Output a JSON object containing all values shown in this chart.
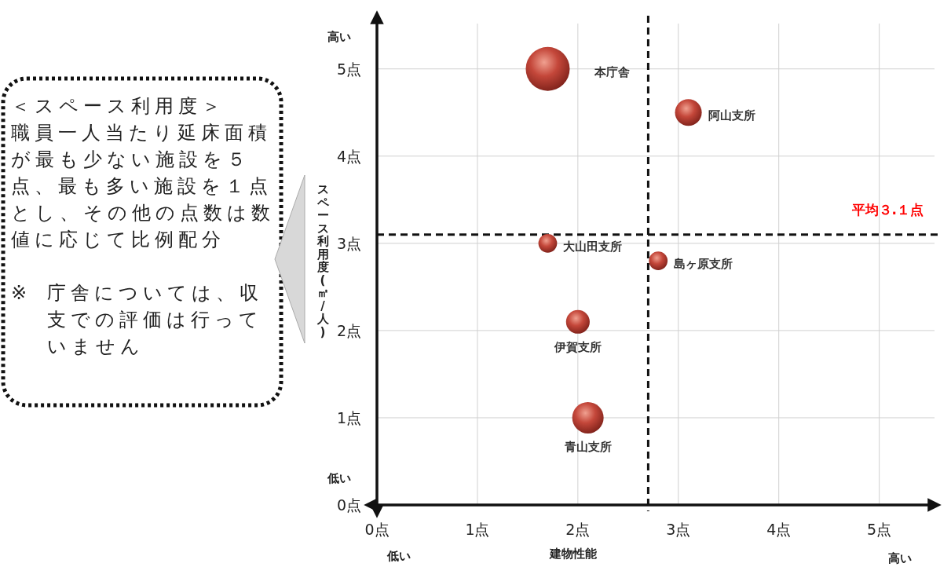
{
  "chart_data": {
    "type": "bubble",
    "xlabel": "建物性能",
    "ylabel": "スペース利用度(㎡/人)",
    "xlim": [
      0,
      5.55
    ],
    "ylim": [
      0,
      5.52
    ],
    "xticks": [
      {
        "value": 0,
        "label": "0点"
      },
      {
        "value": 1,
        "label": "1点"
      },
      {
        "value": 2,
        "label": "2点"
      },
      {
        "value": 3,
        "label": "3点"
      },
      {
        "value": 4,
        "label": "4点"
      },
      {
        "value": 5,
        "label": "5点"
      }
    ],
    "yticks": [
      {
        "value": 0,
        "label": "0点"
      },
      {
        "value": 1,
        "label": "1点"
      },
      {
        "value": 2,
        "label": "2点"
      },
      {
        "value": 3,
        "label": "3点"
      },
      {
        "value": 4,
        "label": "4点"
      },
      {
        "value": 5,
        "label": "5点"
      }
    ],
    "grid": true,
    "series": [
      {
        "name": "本庁舎",
        "color": "#c4473a",
        "x": [
          1.7
        ],
        "values": [
          5.0
        ],
        "sizes": [
          1
        ]
      },
      {
        "name": "阿山支所",
        "color": "#c4473a",
        "x": [
          3.1
        ],
        "values": [
          4.5
        ],
        "sizes": [
          0.37
        ]
      },
      {
        "name": "大山田支所",
        "color": "#c4473a",
        "x": [
          1.7
        ],
        "values": [
          3.0
        ],
        "sizes": [
          0.18
        ]
      },
      {
        "name": "島ヶ原支所",
        "color": "#c4473a",
        "x": [
          2.8
        ],
        "values": [
          2.8
        ],
        "sizes": [
          0.18
        ]
      },
      {
        "name": "伊賀支所",
        "color": "#c4473a",
        "x": [
          2.0
        ],
        "values": [
          2.1
        ],
        "sizes": [
          0.29
        ]
      },
      {
        "name": "青山支所",
        "color": "#c4473a",
        "x": [
          2.1
        ],
        "values": [
          1.0
        ],
        "sizes": [
          0.51
        ]
      }
    ],
    "ref_lines": [
      {
        "axis": "y",
        "value": 3.1,
        "label": "平均３.１点",
        "color": "#111111",
        "line_style": "dashed"
      },
      {
        "axis": "x",
        "value": 2.7,
        "color": "#111111",
        "line_style": "dashed"
      }
    ],
    "annotations": [
      "高い",
      "低い",
      "低い",
      "高い",
      "＜スペース利用度＞",
      "職員一人当たり延床面積が最も少ない施設を５点、最も多い施設を１点とし、その他の点数は数値に応じて比例配分",
      "※",
      "庁舎については、収支での評価は行っていません"
    ]
  }
}
